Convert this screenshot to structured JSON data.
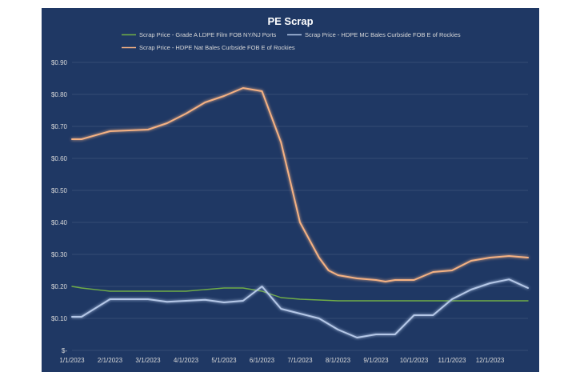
{
  "chart_data": {
    "type": "line",
    "title": "PE Scrap",
    "xlabel": "",
    "ylabel": "",
    "ylim": [
      0,
      0.9
    ],
    "y_ticks": [
      {
        "value": 0.0,
        "label": "$-"
      },
      {
        "value": 0.1,
        "label": "$0.10"
      },
      {
        "value": 0.2,
        "label": "$0.20"
      },
      {
        "value": 0.3,
        "label": "$0.30"
      },
      {
        "value": 0.4,
        "label": "$0.40"
      },
      {
        "value": 0.5,
        "label": "$0.50"
      },
      {
        "value": 0.6,
        "label": "$0.60"
      },
      {
        "value": 0.7,
        "label": "$0.70"
      },
      {
        "value": 0.8,
        "label": "$0.80"
      },
      {
        "value": 0.9,
        "label": "$0.90"
      }
    ],
    "x_ticks": [
      "1/1/2023",
      "2/1/2023",
      "3/1/2023",
      "4/1/2023",
      "5/1/2023",
      "6/1/2023",
      "7/1/2023",
      "8/1/2023",
      "9/1/2023",
      "10/1/2023",
      "11/1/2023",
      "12/1/2023"
    ],
    "x_range": [
      0,
      12
    ],
    "grid": true,
    "legend_position": "top",
    "series": [
      {
        "name": "Scrap Price - Grade A LDPE Film FOB NY/NJ Ports",
        "color": "#70ad47",
        "glow": false,
        "x": [
          0,
          0.25,
          1,
          2,
          3,
          3.5,
          4,
          4.5,
          5,
          5.5,
          6,
          7,
          8,
          9,
          10,
          11,
          12
        ],
        "values": [
          0.2,
          0.195,
          0.185,
          0.185,
          0.185,
          0.19,
          0.195,
          0.195,
          0.185,
          0.165,
          0.16,
          0.155,
          0.155,
          0.155,
          0.155,
          0.155,
          0.155
        ]
      },
      {
        "name": "Scrap Price - HDPE MC Bales Curbside FOB E of Rockies",
        "color": "#b4c7e7",
        "glow": true,
        "x": [
          0,
          0.25,
          1,
          2,
          2.5,
          3,
          3.5,
          4,
          4.5,
          5,
          5.5,
          6,
          6.5,
          7,
          7.5,
          8,
          8.5,
          9,
          9.5,
          10,
          10.5,
          11,
          11.5,
          12
        ],
        "values": [
          0.105,
          0.105,
          0.16,
          0.16,
          0.152,
          0.155,
          0.158,
          0.15,
          0.155,
          0.2,
          0.13,
          0.115,
          0.1,
          0.065,
          0.04,
          0.05,
          0.05,
          0.11,
          0.11,
          0.16,
          0.19,
          0.21,
          0.222,
          0.195
        ]
      },
      {
        "name": "Scrap Price - HDPE Nat Bales Curbside FOB E of Rockies",
        "color": "#f4b183",
        "glow": true,
        "x": [
          0,
          0.25,
          1,
          2,
          2.5,
          3,
          3.5,
          4,
          4.5,
          5,
          5.5,
          6,
          6.5,
          6.75,
          7,
          7.5,
          8,
          8.25,
          8.5,
          8.75,
          9,
          9.5,
          10,
          10.5,
          11,
          11.5,
          12
        ],
        "values": [
          0.66,
          0.66,
          0.685,
          0.69,
          0.71,
          0.74,
          0.775,
          0.795,
          0.82,
          0.81,
          0.65,
          0.4,
          0.29,
          0.25,
          0.235,
          0.225,
          0.22,
          0.215,
          0.22,
          0.22,
          0.22,
          0.245,
          0.25,
          0.28,
          0.29,
          0.295,
          0.29
        ]
      }
    ]
  }
}
